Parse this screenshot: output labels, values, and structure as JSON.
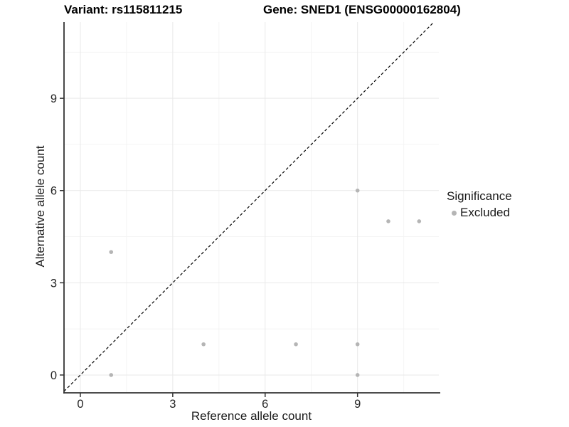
{
  "titles": {
    "left": "Variant: rs115811215",
    "right": "Gene: SNED1 (ENSG00000162804)"
  },
  "legend": {
    "title": "Significance",
    "items": [
      {
        "label": "Excluded",
        "color": "#b5b5b5"
      }
    ]
  },
  "colors": {
    "axis_line": "#333333",
    "tick_text": "#262626",
    "grid_major": "#e9e9e9",
    "grid_minor": "#f4f4f4",
    "point": "#b5b5b5",
    "identity_line": "#000000"
  },
  "chart_data": {
    "type": "scatter",
    "title": "Variant: rs115811215   Gene: SNED1 (ENSG00000162804)",
    "xlabel": "Reference allele count",
    "ylabel": "Alternative allele count",
    "xlim": [
      -0.53,
      11.64
    ],
    "ylim": [
      -0.58,
      11.48
    ],
    "x_ticks": [
      0,
      3,
      6,
      9
    ],
    "y_ticks": [
      0,
      3,
      6,
      9
    ],
    "x_minor_ticks": [
      1.5,
      4.5,
      7.5,
      10.5
    ],
    "y_minor_ticks": [
      1.5,
      4.5,
      7.5,
      10.5
    ],
    "grid": true,
    "legend_position": "right",
    "identity_line": {
      "show": true,
      "style": "dashed",
      "equation": "y = x"
    },
    "series": [
      {
        "name": "Excluded",
        "color": "#b5b5b5",
        "points": [
          [
            1,
            0
          ],
          [
            9,
            0
          ],
          [
            4,
            1
          ],
          [
            7,
            1
          ],
          [
            9,
            1
          ],
          [
            1,
            4
          ],
          [
            9,
            6
          ],
          [
            10,
            5
          ],
          [
            11,
            5
          ]
        ]
      }
    ]
  }
}
